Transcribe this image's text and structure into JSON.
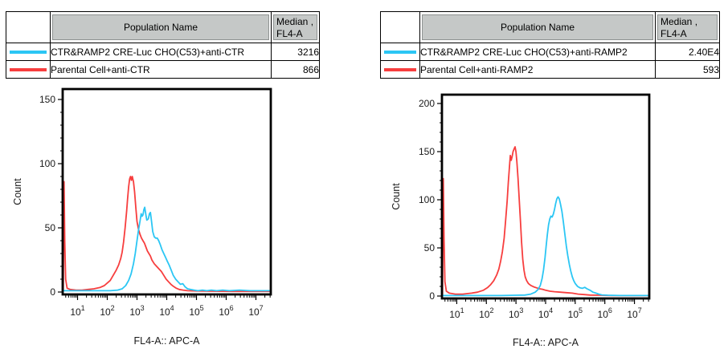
{
  "colors": {
    "cyan": "#2bc6f4",
    "red": "#f73e3e",
    "header_bg": "#c5c8c7"
  },
  "tables": [
    {
      "columns": {
        "population": "Population Name",
        "median_line1": "Median ,",
        "median_line2": "FL4-A"
      },
      "rows": [
        {
          "swatch_color": "#2bc6f4",
          "name": "CTR&RAMP2 CRE-Luc CHO(C53)+anti-CTR",
          "median": "3216"
        },
        {
          "swatch_color": "#f73e3e",
          "name": "Parental Cell+anti-CTR",
          "median": "866"
        }
      ]
    },
    {
      "columns": {
        "population": "Population Name",
        "median_line1": "Median ,",
        "median_line2": "FL4-A"
      },
      "rows": [
        {
          "swatch_color": "#2bc6f4",
          "name": "CTR&RAMP2 CRE-Luc CHO(C53)+anti-RAMP2",
          "median": "2.40E4"
        },
        {
          "swatch_color": "#f73e3e",
          "name": "Parental Cell+anti-RAMP2",
          "median": "593"
        }
      ]
    }
  ],
  "chart_data": [
    {
      "type": "line",
      "subtype": "flow-histogram-overlay",
      "xlabel": "FL4-A:: APC-A",
      "ylabel": "Count",
      "x_scale": "log",
      "xlog_range": [
        0.5,
        7.5
      ],
      "x_major_ticks": [
        1,
        2,
        3,
        4,
        5,
        6,
        7
      ],
      "x_tick_base": "10",
      "ylim": [
        0,
        158
      ],
      "y_major_ticks": [
        0,
        50,
        100,
        150
      ],
      "y_minor_step": 10,
      "grid": false,
      "legend": "table-above",
      "series": [
        {
          "name": "Parental Cell+anti-CTR",
          "color": "#f73e3e",
          "median_fl4a": "866",
          "points": [
            [
              0.52,
              2
            ],
            [
              0.545,
              86
            ],
            [
              0.57,
              40
            ],
            [
              0.6,
              10
            ],
            [
              0.65,
              3
            ],
            [
              0.75,
              2
            ],
            [
              0.95,
              1.5
            ],
            [
              1.15,
              1.5
            ],
            [
              1.35,
              2
            ],
            [
              1.55,
              2.5
            ],
            [
              1.75,
              3.5
            ],
            [
              1.9,
              5
            ],
            [
              2.0,
              7
            ],
            [
              2.1,
              9
            ],
            [
              2.2,
              13
            ],
            [
              2.3,
              17
            ],
            [
              2.38,
              21
            ],
            [
              2.45,
              26
            ],
            [
              2.5,
              31
            ],
            [
              2.55,
              39
            ],
            [
              2.6,
              50
            ],
            [
              2.65,
              63
            ],
            [
              2.68,
              72
            ],
            [
              2.72,
              82
            ],
            [
              2.75,
              88
            ],
            [
              2.78,
              90
            ],
            [
              2.81,
              87
            ],
            [
              2.84,
              90
            ],
            [
              2.88,
              86
            ],
            [
              2.92,
              78
            ],
            [
              2.96,
              66
            ],
            [
              3.0,
              55
            ],
            [
              3.05,
              49
            ],
            [
              3.1,
              45
            ],
            [
              3.15,
              42
            ],
            [
              3.2,
              40
            ],
            [
              3.25,
              38
            ],
            [
              3.3,
              35
            ],
            [
              3.35,
              32
            ],
            [
              3.4,
              30
            ],
            [
              3.45,
              28
            ],
            [
              3.5,
              25
            ],
            [
              3.58,
              22
            ],
            [
              3.66,
              20
            ],
            [
              3.74,
              18
            ],
            [
              3.82,
              16
            ],
            [
              3.9,
              13
            ],
            [
              3.98,
              10
            ],
            [
              4.06,
              8
            ],
            [
              4.14,
              6
            ],
            [
              4.22,
              4.5
            ],
            [
              4.32,
              3
            ],
            [
              4.42,
              2
            ],
            [
              4.55,
              1.5
            ],
            [
              4.7,
              1
            ],
            [
              5.0,
              0.8
            ],
            [
              5.5,
              0.6
            ],
            [
              6.2,
              0.5
            ],
            [
              7.45,
              0.5
            ]
          ]
        },
        {
          "name": "CTR&RAMP2 CRE-Luc CHO(C53)+anti-CTR",
          "color": "#2bc6f4",
          "median_fl4a": "3216",
          "points": [
            [
              0.52,
              1
            ],
            [
              1.0,
              1
            ],
            [
              1.6,
              1
            ],
            [
              2.1,
              1
            ],
            [
              2.35,
              1.5
            ],
            [
              2.5,
              2.5
            ],
            [
              2.62,
              5
            ],
            [
              2.72,
              9
            ],
            [
              2.8,
              14
            ],
            [
              2.88,
              22
            ],
            [
              2.94,
              30
            ],
            [
              3.0,
              40
            ],
            [
              3.05,
              48
            ],
            [
              3.1,
              55
            ],
            [
              3.14,
              61
            ],
            [
              3.17,
              59
            ],
            [
              3.2,
              60
            ],
            [
              3.23,
              64
            ],
            [
              3.26,
              66
            ],
            [
              3.3,
              60
            ],
            [
              3.33,
              56
            ],
            [
              3.38,
              57
            ],
            [
              3.42,
              61
            ],
            [
              3.45,
              62
            ],
            [
              3.49,
              55
            ],
            [
              3.53,
              47
            ],
            [
              3.58,
              43
            ],
            [
              3.63,
              42
            ],
            [
              3.68,
              42
            ],
            [
              3.73,
              40
            ],
            [
              3.78,
              37
            ],
            [
              3.84,
              33
            ],
            [
              3.9,
              30
            ],
            [
              3.96,
              27
            ],
            [
              4.02,
              24
            ],
            [
              4.08,
              21
            ],
            [
              4.15,
              17
            ],
            [
              4.22,
              13
            ],
            [
              4.3,
              10
            ],
            [
              4.38,
              8
            ],
            [
              4.46,
              6
            ],
            [
              4.54,
              6.5
            ],
            [
              4.62,
              4
            ],
            [
              4.7,
              2.5
            ],
            [
              4.8,
              2
            ],
            [
              4.92,
              1.5
            ],
            [
              5.05,
              1
            ],
            [
              5.2,
              1.5
            ],
            [
              5.35,
              1
            ],
            [
              5.5,
              1.5
            ],
            [
              5.68,
              1
            ],
            [
              5.88,
              1.5
            ],
            [
              6.1,
              1
            ],
            [
              6.45,
              1.5
            ],
            [
              6.8,
              1
            ],
            [
              7.45,
              1
            ]
          ]
        }
      ]
    },
    {
      "type": "line",
      "subtype": "flow-histogram-overlay",
      "xlabel": "FL4-A:: APC-A",
      "ylabel": "Count",
      "x_scale": "log",
      "xlog_range": [
        0.5,
        7.5
      ],
      "x_major_ticks": [
        1,
        2,
        3,
        4,
        5,
        6,
        7
      ],
      "x_tick_base": "10",
      "ylim": [
        0,
        209
      ],
      "y_major_ticks": [
        0,
        50,
        100,
        150,
        200
      ],
      "y_minor_step": 10,
      "grid": false,
      "legend": "table-above",
      "series": [
        {
          "name": "Parental Cell+anti-RAMP2",
          "color": "#f73e3e",
          "median_fl4a": "593",
          "points": [
            [
              0.52,
              2
            ],
            [
              0.545,
              122
            ],
            [
              0.57,
              60
            ],
            [
              0.6,
              15
            ],
            [
              0.65,
              5
            ],
            [
              0.75,
              3
            ],
            [
              0.95,
              2
            ],
            [
              1.2,
              2
            ],
            [
              1.5,
              3
            ],
            [
              1.7,
              4
            ],
            [
              1.9,
              6
            ],
            [
              2.05,
              9
            ],
            [
              2.15,
              12
            ],
            [
              2.25,
              16
            ],
            [
              2.35,
              22
            ],
            [
              2.42,
              28
            ],
            [
              2.48,
              36
            ],
            [
              2.54,
              46
            ],
            [
              2.6,
              60
            ],
            [
              2.65,
              78
            ],
            [
              2.7,
              98
            ],
            [
              2.74,
              118
            ],
            [
              2.78,
              134
            ],
            [
              2.81,
              146
            ],
            [
              2.84,
              141
            ],
            [
              2.87,
              145
            ],
            [
              2.9,
              150
            ],
            [
              2.94,
              153
            ],
            [
              2.97,
              155
            ],
            [
              3.0,
              150
            ],
            [
              3.03,
              140
            ],
            [
              3.07,
              122
            ],
            [
              3.11,
              100
            ],
            [
              3.15,
              78
            ],
            [
              3.19,
              56
            ],
            [
              3.23,
              38
            ],
            [
              3.27,
              27
            ],
            [
              3.31,
              20
            ],
            [
              3.36,
              16
            ],
            [
              3.42,
              13
            ],
            [
              3.5,
              11
            ],
            [
              3.6,
              9.5
            ],
            [
              3.7,
              8.5
            ],
            [
              3.8,
              7.5
            ],
            [
              3.9,
              7
            ],
            [
              4.0,
              6
            ],
            [
              4.15,
              5
            ],
            [
              4.3,
              4.5
            ],
            [
              4.5,
              4
            ],
            [
              4.7,
              3.5
            ],
            [
              4.9,
              3
            ],
            [
              5.1,
              2
            ],
            [
              5.3,
              1.5
            ],
            [
              5.5,
              1
            ],
            [
              5.8,
              0.8
            ],
            [
              6.2,
              0.5
            ],
            [
              7.45,
              0.5
            ]
          ]
        },
        {
          "name": "CTR&RAMP2 CRE-Luc CHO(C53)+anti-RAMP2",
          "color": "#2bc6f4",
          "median_fl4a": "2.40E4",
          "points": [
            [
              0.52,
              0.5
            ],
            [
              1.5,
              0.5
            ],
            [
              2.5,
              0.5
            ],
            [
              3.0,
              0.8
            ],
            [
              3.3,
              1
            ],
            [
              3.5,
              2
            ],
            [
              3.65,
              4
            ],
            [
              3.75,
              7
            ],
            [
              3.82,
              11
            ],
            [
              3.88,
              18
            ],
            [
              3.93,
              27
            ],
            [
              3.98,
              40
            ],
            [
              4.02,
              52
            ],
            [
              4.06,
              64
            ],
            [
              4.1,
              74
            ],
            [
              4.14,
              80
            ],
            [
              4.18,
              83
            ],
            [
              4.22,
              82
            ],
            [
              4.26,
              85
            ],
            [
              4.3,
              90
            ],
            [
              4.34,
              96
            ],
            [
              4.38,
              101
            ],
            [
              4.42,
              103
            ],
            [
              4.46,
              101
            ],
            [
              4.5,
              96
            ],
            [
              4.55,
              88
            ],
            [
              4.6,
              77
            ],
            [
              4.65,
              64
            ],
            [
              4.7,
              52
            ],
            [
              4.75,
              42
            ],
            [
              4.8,
              33
            ],
            [
              4.85,
              26
            ],
            [
              4.9,
              20
            ],
            [
              4.95,
              16
            ],
            [
              5.0,
              13
            ],
            [
              5.08,
              10
            ],
            [
              5.16,
              8.5
            ],
            [
              5.24,
              8
            ],
            [
              5.32,
              9
            ],
            [
              5.4,
              7.5
            ],
            [
              5.5,
              6
            ],
            [
              5.6,
              4
            ],
            [
              5.7,
              3
            ],
            [
              5.8,
              2
            ],
            [
              5.9,
              1.2
            ],
            [
              6.1,
              0.8
            ],
            [
              6.5,
              0.5
            ],
            [
              7.45,
              0.5
            ]
          ]
        }
      ]
    }
  ]
}
